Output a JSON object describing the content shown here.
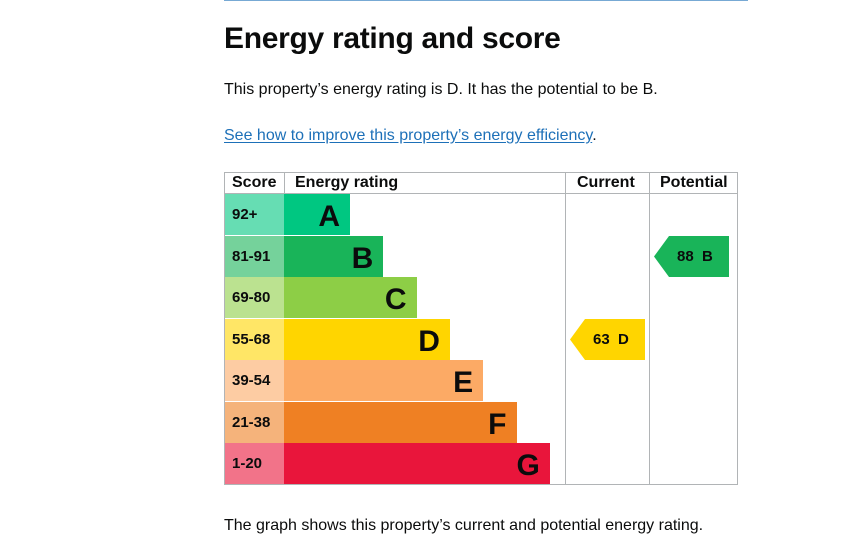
{
  "page": {
    "heading": "Energy rating and score",
    "summary": "This property’s energy rating is D. It has the potential to be B.",
    "link_text": "See how to improve this property’s energy efficiency",
    "link_suffix": ".",
    "footnote": "The graph shows this property’s current and potential energy rating."
  },
  "chart_data": {
    "type": "table",
    "headers": {
      "score": "Score",
      "rating": "Energy rating",
      "current": "Current",
      "potential": "Potential"
    },
    "bands": [
      {
        "letter": "A",
        "range": "92+",
        "color": "#00c781",
        "score_color": "#66ddb3"
      },
      {
        "letter": "B",
        "range": "81-91",
        "color": "#19b459",
        "score_color": "#75d29b"
      },
      {
        "letter": "C",
        "range": "69-80",
        "color": "#8dce46",
        "score_color": "#bbe290"
      },
      {
        "letter": "D",
        "range": "55-68",
        "color": "#ffd500",
        "score_color": "#ffe666"
      },
      {
        "letter": "E",
        "range": "39-54",
        "color": "#fcaa65",
        "score_color": "#fdcca3"
      },
      {
        "letter": "F",
        "range": "21-38",
        "color": "#ef8023",
        "score_color": "#f5b37b"
      },
      {
        "letter": "G",
        "range": "1-20",
        "color": "#e9153b",
        "score_color": "#f27389"
      }
    ],
    "current": {
      "score": 63,
      "band": "D",
      "label": "63  D",
      "color": "#ffd500"
    },
    "potential": {
      "score": 88,
      "band": "B",
      "label": "88  B",
      "color": "#19b459"
    }
  }
}
